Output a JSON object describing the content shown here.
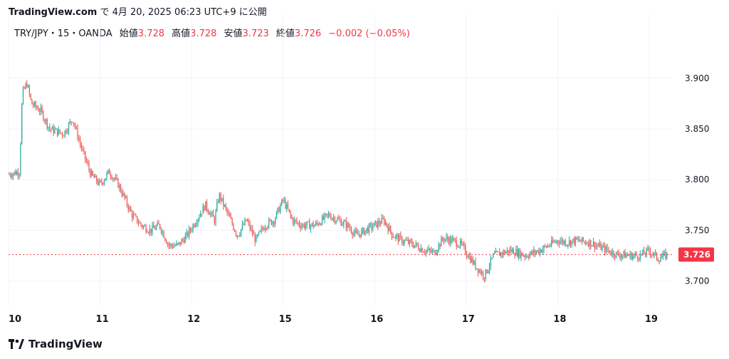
{
  "header": {
    "site": "TradingView.com",
    "published_text": "で 4月 20, 2025 06:23 UTC+9 に公開"
  },
  "legend": {
    "symbol": "TRY/JPY・15・OANDA",
    "open_label": "始値",
    "open": "3.728",
    "high_label": "高値",
    "high": "3.728",
    "low_label": "安値",
    "low": "3.723",
    "close_label": "終値",
    "close": "3.726",
    "change": "−0.002 (−0.05%)"
  },
  "footer": {
    "brand": "TradingView"
  },
  "colors": {
    "up": "#26a69a",
    "down": "#ef5350",
    "grid": "#f0f3fa",
    "last_price": "#f23645"
  },
  "chart_data": {
    "type": "candlestick",
    "title": "",
    "xlabel": "",
    "ylabel": "",
    "ylim": [
      3.675,
      3.935
    ],
    "y_ticks": [
      "3.700",
      "3.750",
      "3.800",
      "3.850",
      "3.900"
    ],
    "x_ticks": [
      "10",
      "11",
      "12",
      "15",
      "16",
      "17",
      "18",
      "19"
    ],
    "grid": true,
    "last_price": "3.726",
    "series": [
      {
        "values": [
          [
            0,
            3.805
          ],
          [
            0.12,
            3.808
          ],
          [
            0.15,
            3.885
          ],
          [
            0.2,
            3.895
          ],
          [
            0.25,
            3.875
          ],
          [
            0.35,
            3.868
          ],
          [
            0.45,
            3.85
          ],
          [
            0.6,
            3.845
          ],
          [
            0.7,
            3.86
          ],
          [
            0.8,
            3.83
          ],
          [
            0.9,
            3.805
          ],
          [
            1.0,
            3.795
          ],
          [
            1.1,
            3.808
          ],
          [
            1.2,
            3.795
          ],
          [
            1.35,
            3.765
          ],
          [
            1.45,
            3.755
          ],
          [
            1.55,
            3.75
          ],
          [
            1.65,
            3.755
          ],
          [
            1.75,
            3.735
          ],
          [
            1.85,
            3.735
          ],
          [
            1.95,
            3.745
          ],
          [
            2.05,
            3.76
          ],
          [
            2.15,
            3.775
          ],
          [
            2.25,
            3.76
          ],
          [
            2.3,
            3.785
          ],
          [
            2.4,
            3.765
          ],
          [
            2.5,
            3.745
          ],
          [
            2.6,
            3.76
          ],
          [
            2.7,
            3.74
          ],
          [
            2.8,
            3.755
          ],
          [
            2.9,
            3.76
          ],
          [
            3.0,
            3.78
          ],
          [
            3.1,
            3.76
          ],
          [
            3.2,
            3.755
          ],
          [
            3.35,
            3.755
          ],
          [
            3.5,
            3.765
          ],
          [
            3.6,
            3.76
          ],
          [
            3.7,
            3.755
          ],
          [
            3.8,
            3.745
          ],
          [
            3.9,
            3.75
          ],
          [
            4.0,
            3.755
          ],
          [
            4.1,
            3.76
          ],
          [
            4.2,
            3.745
          ],
          [
            4.3,
            3.74
          ],
          [
            4.45,
            3.735
          ],
          [
            4.55,
            3.73
          ],
          [
            4.65,
            3.728
          ],
          [
            4.75,
            3.742
          ],
          [
            4.85,
            3.74
          ],
          [
            4.95,
            3.735
          ],
          [
            5.1,
            3.715
          ],
          [
            5.2,
            3.705
          ],
          [
            5.3,
            3.725
          ],
          [
            5.4,
            3.728
          ],
          [
            5.5,
            3.73
          ],
          [
            5.65,
            3.725
          ],
          [
            5.8,
            3.73
          ],
          [
            5.9,
            3.735
          ],
          [
            6.0,
            3.74
          ],
          [
            6.1,
            3.738
          ],
          [
            6.2,
            3.74
          ],
          [
            6.35,
            3.738
          ],
          [
            6.5,
            3.732
          ],
          [
            6.65,
            3.726
          ],
          [
            6.8,
            3.725
          ],
          [
            6.9,
            3.725
          ],
          [
            7.0,
            3.73
          ],
          [
            7.1,
            3.722
          ],
          [
            7.2,
            3.726
          ]
        ]
      }
    ]
  }
}
